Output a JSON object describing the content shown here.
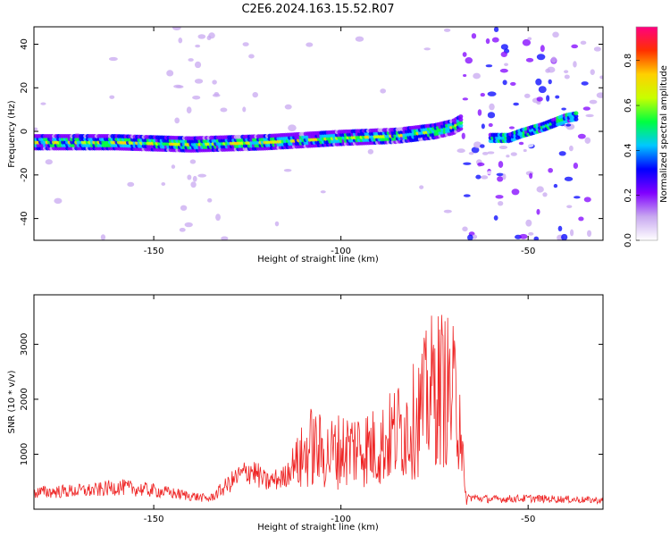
{
  "title": "C2E6.2024.163.15.52.R07",
  "chart_data": [
    {
      "type": "heatmap",
      "xlabel": "Height of straight line (km)",
      "ylabel": "Frequency (Hz)",
      "xlim": [
        -182,
        -30
      ],
      "ylim": [
        -50,
        48
      ],
      "xticks": [
        -150,
        -100,
        -50
      ],
      "yticks": [
        -40,
        -20,
        0,
        20,
        40
      ],
      "colorbar": {
        "label": "Normalized spectral amplitude",
        "range": [
          0,
          0.95
        ],
        "ticks": [
          0.0,
          0.2,
          0.4,
          0.6,
          0.8
        ],
        "colors": [
          "#ffffff",
          "#c8a8f0",
          "#8000ff",
          "#0000ff",
          "#00c8ff",
          "#00ff40",
          "#c8ff00",
          "#ffd000",
          "#ff3000",
          "#ff0080"
        ]
      },
      "ridge": {
        "x": [
          -182,
          -160,
          -140,
          -120,
          -100,
          -85,
          -75,
          -70,
          -68
        ],
        "frequency": [
          -5,
          -5,
          -6,
          -5,
          -3,
          -2,
          0,
          2,
          4
        ]
      },
      "secondary_ridge": {
        "x": [
          -60,
          -55,
          -52,
          -46,
          -40,
          -37
        ],
        "frequency": [
          -3,
          -3,
          -1,
          2,
          6,
          7
        ]
      },
      "grid": false
    },
    {
      "type": "line",
      "xlabel": "Height of straight line (km)",
      "ylabel": "SNR (10 * v/v)",
      "xlim": [
        -182,
        -30
      ],
      "ylim": [
        0,
        3900
      ],
      "xticks": [
        -150,
        -100,
        -50
      ],
      "yticks": [
        1000,
        2000,
        3000
      ],
      "color": "#ee2222",
      "envelope": {
        "x": [
          -182,
          -165,
          -160,
          -150,
          -140,
          -135,
          -132,
          -128,
          -124,
          -120,
          -115,
          -112,
          -108,
          -104,
          -100,
          -95,
          -90,
          -85,
          -82,
          -80,
          -78,
          -76,
          -74,
          -72,
          -70,
          -68,
          -67,
          -66,
          -60,
          -50,
          -40,
          -30
        ],
        "y": [
          420,
          480,
          560,
          470,
          330,
          260,
          480,
          780,
          1000,
          680,
          800,
          1300,
          1900,
          1650,
          1800,
          1900,
          1850,
          2350,
          2550,
          2700,
          3100,
          3550,
          3700,
          3650,
          3350,
          3100,
          450,
          300,
          250,
          270,
          250,
          220
        ]
      },
      "grid": false
    }
  ]
}
